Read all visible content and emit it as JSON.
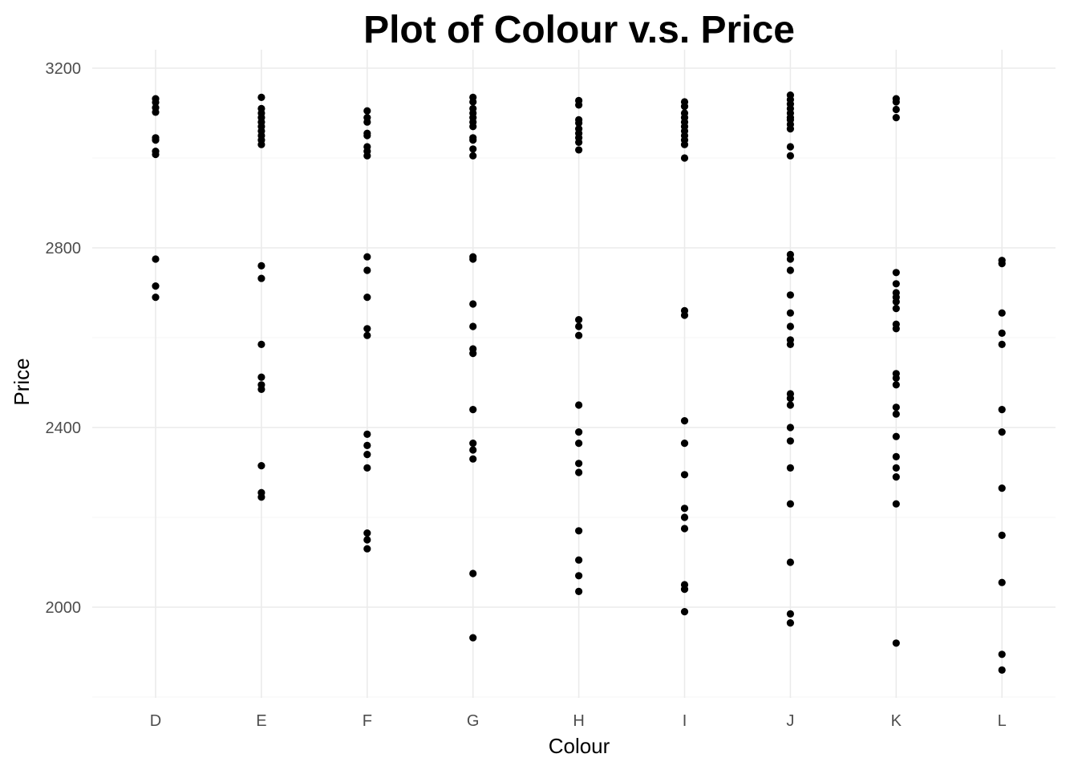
{
  "chart_data": {
    "type": "scatter",
    "title": "Plot of Colour v.s. Price",
    "xlabel": "Colour",
    "ylabel": "Price",
    "categories": [
      "D",
      "E",
      "F",
      "G",
      "H",
      "I",
      "J",
      "K",
      "L"
    ],
    "ylim": [
      1800,
      3200
    ],
    "yticks": [
      2000,
      2400,
      2800,
      3200
    ],
    "grid": true,
    "point_color": "#000000",
    "points": {
      "D": [
        3132,
        3124,
        3112,
        3102,
        3045,
        3040,
        3015,
        3008,
        2775,
        2715,
        2690
      ],
      "E": [
        3135,
        3110,
        3100,
        3090,
        3080,
        3070,
        3060,
        3050,
        3040,
        3030,
        2760,
        2732,
        2585,
        2512,
        2495,
        2485,
        2315,
        2255,
        2245
      ],
      "F": [
        3105,
        3090,
        3080,
        3055,
        3050,
        3025,
        3015,
        3005,
        2780,
        2750,
        2690,
        2620,
        2605,
        2385,
        2360,
        2340,
        2310,
        2165,
        2150,
        2130
      ],
      "G": [
        3135,
        3125,
        3110,
        3100,
        3090,
        3080,
        3070,
        3045,
        3040,
        3020,
        3005,
        2780,
        2775,
        2675,
        2625,
        2575,
        2565,
        2440,
        2365,
        2350,
        2330,
        2075,
        1932
      ],
      "H": [
        3128,
        3118,
        3085,
        3078,
        3065,
        3055,
        3045,
        3035,
        3018,
        2640,
        2625,
        2605,
        2450,
        2390,
        2365,
        2320,
        2300,
        2170,
        2105,
        2070,
        2035
      ],
      "I": [
        3125,
        3115,
        3100,
        3090,
        3080,
        3070,
        3060,
        3050,
        3040,
        3030,
        3000,
        2660,
        2650,
        2415,
        2365,
        2295,
        2220,
        2200,
        2175,
        2050,
        2040,
        1990
      ],
      "J": [
        3140,
        3130,
        3120,
        3110,
        3100,
        3090,
        3085,
        3075,
        3065,
        3025,
        3005,
        2785,
        2775,
        2750,
        2695,
        2655,
        2625,
        2595,
        2585,
        2475,
        2465,
        2450,
        2400,
        2370,
        2310,
        2230,
        2100,
        1985,
        1965
      ],
      "K": [
        3132,
        3125,
        3108,
        3090,
        2745,
        2720,
        2700,
        2690,
        2680,
        2665,
        2630,
        2620,
        2520,
        2510,
        2495,
        2445,
        2430,
        2380,
        2335,
        2310,
        2290,
        2230,
        1920
      ],
      "L": [
        2772,
        2765,
        2655,
        2610,
        2585,
        2440,
        2390,
        2265,
        2160,
        2055,
        1895,
        1860
      ]
    }
  }
}
